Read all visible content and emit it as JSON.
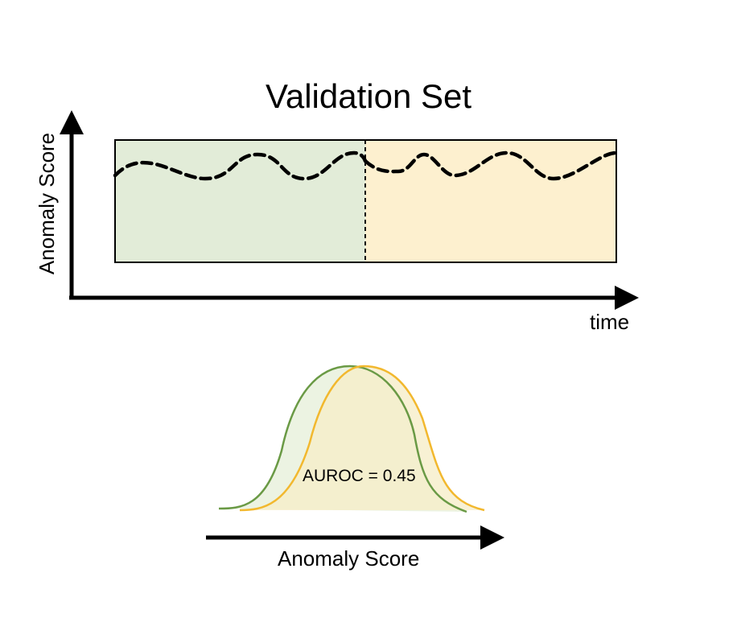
{
  "title": "Validation Set",
  "timeline": {
    "y_axis_label": "Anomaly Score",
    "x_axis_label": "time",
    "left_region_color": "#e2ecd8",
    "right_region_color": "#fdf0cf",
    "signal_style": "dashed",
    "signal_color": "#000000"
  },
  "distribution": {
    "x_axis_label": "Anomaly Score",
    "metric_text": "AUROC = 0.45",
    "first_curve_color": "#6a9a45",
    "second_curve_color": "#f2b82e"
  }
}
